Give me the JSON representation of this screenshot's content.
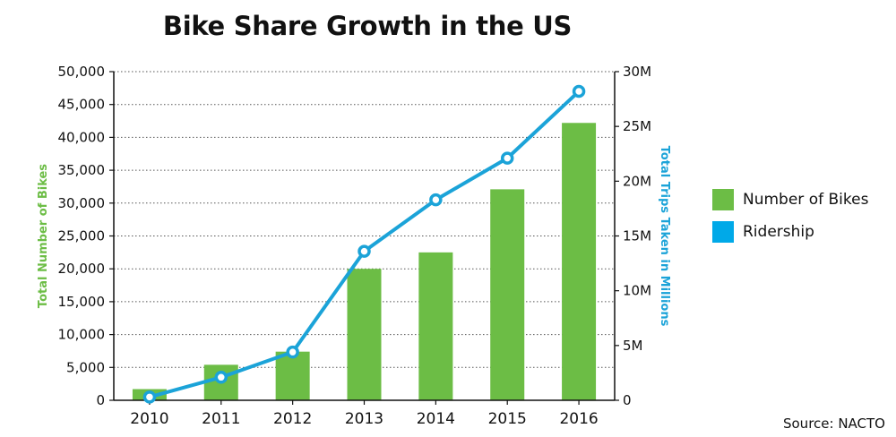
{
  "title": "Bike Share Growth in the US",
  "source": "Source: NACTO",
  "colors": {
    "bikes": "#6cbd45",
    "ridership": "#1ba3d8",
    "ridership_swatch": "#00a9e8"
  },
  "legend": [
    {
      "label": "Number of Bikes",
      "color": "#6cbd45"
    },
    {
      "label": "Ridership",
      "color": "#00a9e8"
    }
  ],
  "chart_data": {
    "type": "bar",
    "categories": [
      "2010",
      "2011",
      "2012",
      "2013",
      "2014",
      "2015",
      "2016"
    ],
    "series": [
      {
        "name": "Number of Bikes",
        "type": "bar",
        "axis": "left",
        "values": [
          1700,
          5400,
          7400,
          20000,
          22500,
          32100,
          42200
        ]
      },
      {
        "name": "Ridership",
        "type": "line",
        "axis": "right",
        "values": [
          0.3,
          2.1,
          4.4,
          13.6,
          18.3,
          22.1,
          28.2
        ]
      }
    ],
    "ylabel": "Total Number of Bikes",
    "ylabel_right": "Total Trips Taken in Millions",
    "ylim": [
      0,
      50000
    ],
    "ylim_right": [
      0,
      30
    ],
    "yticks": [
      0,
      5000,
      10000,
      15000,
      20000,
      25000,
      30000,
      35000,
      40000,
      45000,
      50000
    ],
    "ytick_labels": [
      "0",
      "5,000",
      "10,000",
      "15,000",
      "20,000",
      "25,000",
      "30,000",
      "35,000",
      "40,000",
      "45,000",
      "50,000"
    ],
    "yticks_right": [
      0,
      5,
      10,
      15,
      20,
      25,
      30
    ],
    "ytick_labels_right": [
      "0",
      "5M",
      "10M",
      "15M",
      "20M",
      "25M",
      "30M"
    ],
    "grid": true,
    "legend_position": "right"
  }
}
